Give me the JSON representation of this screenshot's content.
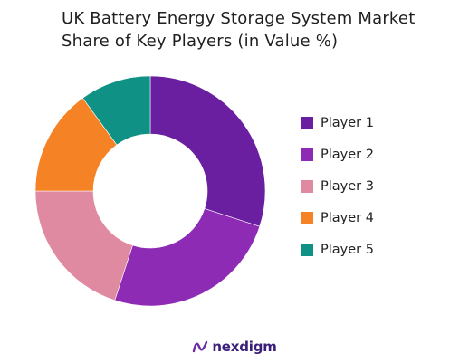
{
  "title_lines": [
    "UK Battery Energy Storage System Market",
    "Share of Key Players (in Value %)"
  ],
  "brand": {
    "name": "nexdigm",
    "color": "#3a1f7a",
    "mark_color": "#6b2fa3"
  },
  "chart_data": {
    "type": "pie",
    "variant": "donut",
    "title": "UK Battery Energy Storage System Market Share of Key Players (in Value %)",
    "categories": [
      "Player 1",
      "Player 2",
      "Player 3",
      "Player 4",
      "Player 5"
    ],
    "values": [
      30,
      25,
      20,
      15,
      10
    ],
    "unit": "%",
    "colors": [
      "#6a1fa0",
      "#8e2bb5",
      "#e08aa2",
      "#f58225",
      "#0f9285"
    ],
    "start_angle_deg": 0,
    "direction": "clockwise",
    "legend_position": "right"
  }
}
